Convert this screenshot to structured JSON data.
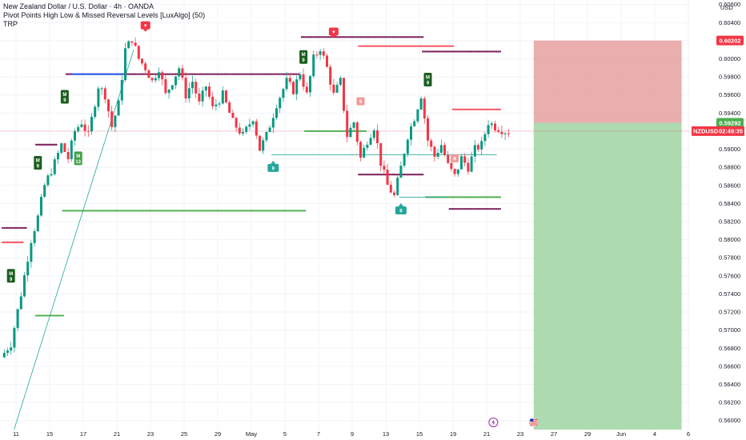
{
  "legend": {
    "title": "New Zealand Dollar / U.S. Dollar · 4h · OANDA",
    "indicator": "Pivot Points High Low & Missed Reversal Levels [LuxAlgo] (50)",
    "author": "TRP"
  },
  "colors": {
    "up": "#089981",
    "down": "#f23645",
    "pivot_high": "#7b1f5a",
    "pivot_low": "#4caf50",
    "missed_high": "#f7525f",
    "blue_level": "#2962ff",
    "tp_zone": "#a5d6a7",
    "sl_zone": "#e8a5a5",
    "price_line": "#f23645",
    "trend_line": "#26a69a"
  },
  "chart_data": {
    "type": "candlestick",
    "symbol": "NZDUSD",
    "currency": "USD",
    "ylim": [
      0.559,
      0.6065
    ],
    "xlim": [
      0,
      204
    ],
    "y_ticks": [
      "0.60600",
      "0.60400",
      "0.60200",
      "0.60000",
      "0.59800",
      "0.59600",
      "0.59400",
      "0.59200",
      "0.59000",
      "0.58800",
      "0.58600",
      "0.58400",
      "0.58200",
      "0.58000",
      "0.57800",
      "0.57600",
      "0.57400",
      "0.57200",
      "0.57000",
      "0.56800",
      "0.56600",
      "0.56400",
      "0.56200",
      "0.56000"
    ],
    "x_ticks": [
      {
        "label": "11",
        "bar": 4
      },
      {
        "label": "15",
        "bar": 14
      },
      {
        "label": "17",
        "bar": 24
      },
      {
        "label": "21",
        "bar": 34
      },
      {
        "label": "23",
        "bar": 44
      },
      {
        "label": "25",
        "bar": 54
      },
      {
        "label": "29",
        "bar": 64
      },
      {
        "label": "May",
        "bar": 74
      },
      {
        "label": "5",
        "bar": 84
      },
      {
        "label": "7",
        "bar": 94
      },
      {
        "label": "9",
        "bar": 104
      },
      {
        "label": "13",
        "bar": 114
      },
      {
        "label": "15",
        "bar": 124
      },
      {
        "label": "19",
        "bar": 134
      },
      {
        "label": "21",
        "bar": 144
      },
      {
        "label": "23",
        "bar": 154
      },
      {
        "label": "27",
        "bar": 164
      },
      {
        "label": "29",
        "bar": 174
      },
      {
        "label": "Jun",
        "bar": 184
      },
      {
        "label": "4",
        "bar": 194
      },
      {
        "label": "6",
        "bar": 204
      }
    ],
    "price_waypoints": [
      [
        0,
        0.567
      ],
      [
        3,
        0.5685
      ],
      [
        6,
        0.574
      ],
      [
        9,
        0.58
      ],
      [
        11,
        0.5825
      ],
      [
        13,
        0.586
      ],
      [
        16,
        0.5885
      ],
      [
        18,
        0.5905
      ],
      [
        20,
        0.589
      ],
      [
        22,
        0.592
      ],
      [
        24,
        0.593
      ],
      [
        26,
        0.5915
      ],
      [
        29,
        0.597
      ],
      [
        31,
        0.596
      ],
      [
        33,
        0.5925
      ],
      [
        35,
        0.595
      ],
      [
        37,
        0.601
      ],
      [
        39,
        0.6022
      ],
      [
        41,
        0.6
      ],
      [
        43,
        0.599
      ],
      [
        45,
        0.5975
      ],
      [
        47,
        0.599
      ],
      [
        49,
        0.596
      ],
      [
        51,
        0.5975
      ],
      [
        53,
        0.599
      ],
      [
        55,
        0.596
      ],
      [
        57,
        0.5975
      ],
      [
        59,
        0.595
      ],
      [
        61,
        0.597
      ],
      [
        63,
        0.5945
      ],
      [
        66,
        0.596
      ],
      [
        69,
        0.593
      ],
      [
        72,
        0.5915
      ],
      [
        75,
        0.5935
      ],
      [
        77,
        0.59
      ],
      [
        79,
        0.5915
      ],
      [
        82,
        0.595
      ],
      [
        85,
        0.5975
      ],
      [
        87,
        0.5965
      ],
      [
        89,
        0.5985
      ],
      [
        91,
        0.596
      ],
      [
        93,
        0.6
      ],
      [
        95,
        0.6012
      ],
      [
        97,
        0.599
      ],
      [
        99,
        0.596
      ],
      [
        101,
        0.5975
      ],
      [
        103,
        0.5915
      ],
      [
        105,
        0.593
      ],
      [
        107,
        0.589
      ],
      [
        109,
        0.591
      ],
      [
        111,
        0.5925
      ],
      [
        113,
        0.5885
      ],
      [
        115,
        0.586
      ],
      [
        117,
        0.5848
      ],
      [
        119,
        0.588
      ],
      [
        121,
        0.5915
      ],
      [
        123,
        0.5935
      ],
      [
        125,
        0.596
      ],
      [
        127,
        0.591
      ],
      [
        129,
        0.5892
      ],
      [
        131,
        0.5905
      ],
      [
        133,
        0.5882
      ],
      [
        135,
        0.587
      ],
      [
        137,
        0.589
      ],
      [
        139,
        0.588
      ],
      [
        141,
        0.59
      ],
      [
        143,
        0.5905
      ],
      [
        145,
        0.593
      ],
      [
        147,
        0.5925
      ],
      [
        150,
        0.592
      ]
    ],
    "current_price": 0.592,
    "current_label": "NZDUSD",
    "countdown": "02:49:35",
    "position": {
      "entry": 0.59292,
      "stop": 0.60202,
      "target": 0.559,
      "entry_label": "0.59292",
      "stop_label": "0.60202",
      "bar_start": 158,
      "bar_end": 202
    },
    "pivot_high_levels": [
      {
        "price": 0.5905,
        "bar_start": 10,
        "bar_end": 16
      },
      {
        "price": 0.5983,
        "bar_start": 19,
        "bar_end": 88
      },
      {
        "price": 0.6024,
        "bar_start": 89,
        "bar_end": 125
      },
      {
        "price": 0.6008,
        "bar_start": 125,
        "bar_end": 148
      },
      {
        "price": 0.5872,
        "bar_start": 106,
        "bar_end": 125
      },
      {
        "price": 0.5834,
        "bar_start": 133,
        "bar_end": 148
      },
      {
        "price": 0.5813,
        "bar_start": 0,
        "bar_end": 7
      }
    ],
    "pivot_low_levels": [
      {
        "price": 0.5832,
        "bar_start": 18,
        "bar_end": 90
      },
      {
        "price": 0.592,
        "bar_start": 90,
        "bar_end": 108
      },
      {
        "price": 0.5847,
        "bar_start": 126,
        "bar_end": 148
      },
      {
        "price": 0.5716,
        "bar_start": 10,
        "bar_end": 18
      }
    ],
    "missed_high_levels": [
      {
        "price": 0.6014,
        "bar_start": 106,
        "bar_end": 134
      },
      {
        "price": 0.5944,
        "bar_start": 134,
        "bar_end": 148
      },
      {
        "price": 0.5797,
        "bar_start": 0,
        "bar_end": 6
      }
    ],
    "blue_levels": [
      {
        "price": 0.5983,
        "bar_start": 21,
        "bar_end": 36
      }
    ],
    "trend_lines": [
      {
        "from": [
          3,
          0.5585
        ],
        "to": [
          39,
          0.601
        ]
      },
      {
        "from": [
          80,
          0.5894
        ],
        "to": [
          147,
          0.5894
        ]
      },
      {
        "from": [
          118,
          0.5847
        ],
        "to": [
          132,
          0.5847
        ]
      }
    ],
    "pivot_markers": [
      {
        "kind": "high",
        "bar": 42,
        "price": 0.6022,
        "label": "▼"
      },
      {
        "kind": "high",
        "bar": 98,
        "price": 0.6015,
        "label": "▼"
      },
      {
        "kind": "low",
        "bar": 80,
        "price": 0.589,
        "label": "9"
      },
      {
        "kind": "low",
        "bar": 118,
        "price": 0.5843,
        "label": "9"
      }
    ],
    "td_markers": [
      {
        "kind": "green",
        "bar": 18,
        "price": 0.5958,
        "text": "M\n9"
      },
      {
        "kind": "green",
        "bar": 10,
        "price": 0.5885,
        "text": "M\n9"
      },
      {
        "kind": "green",
        "bar": 2,
        "price": 0.576,
        "text": "M\n9"
      },
      {
        "kind": "green",
        "bar": 89,
        "price": 0.6002,
        "text": "M\n9"
      },
      {
        "kind": "green",
        "bar": 126,
        "price": 0.5977,
        "text": "M\n9"
      },
      {
        "kind": "green_light",
        "bar": 22,
        "price": 0.589,
        "text": "M\n13"
      },
      {
        "kind": "red_light",
        "bar": 106,
        "price": 0.5953,
        "text": "9"
      },
      {
        "kind": "red_light",
        "bar": 134,
        "price": 0.589,
        "text": "9"
      }
    ],
    "x_axis_icons": [
      {
        "name": "lightning-icon",
        "bar": 146
      },
      {
        "name": "us-flag-icon",
        "bar": 158
      }
    ]
  }
}
